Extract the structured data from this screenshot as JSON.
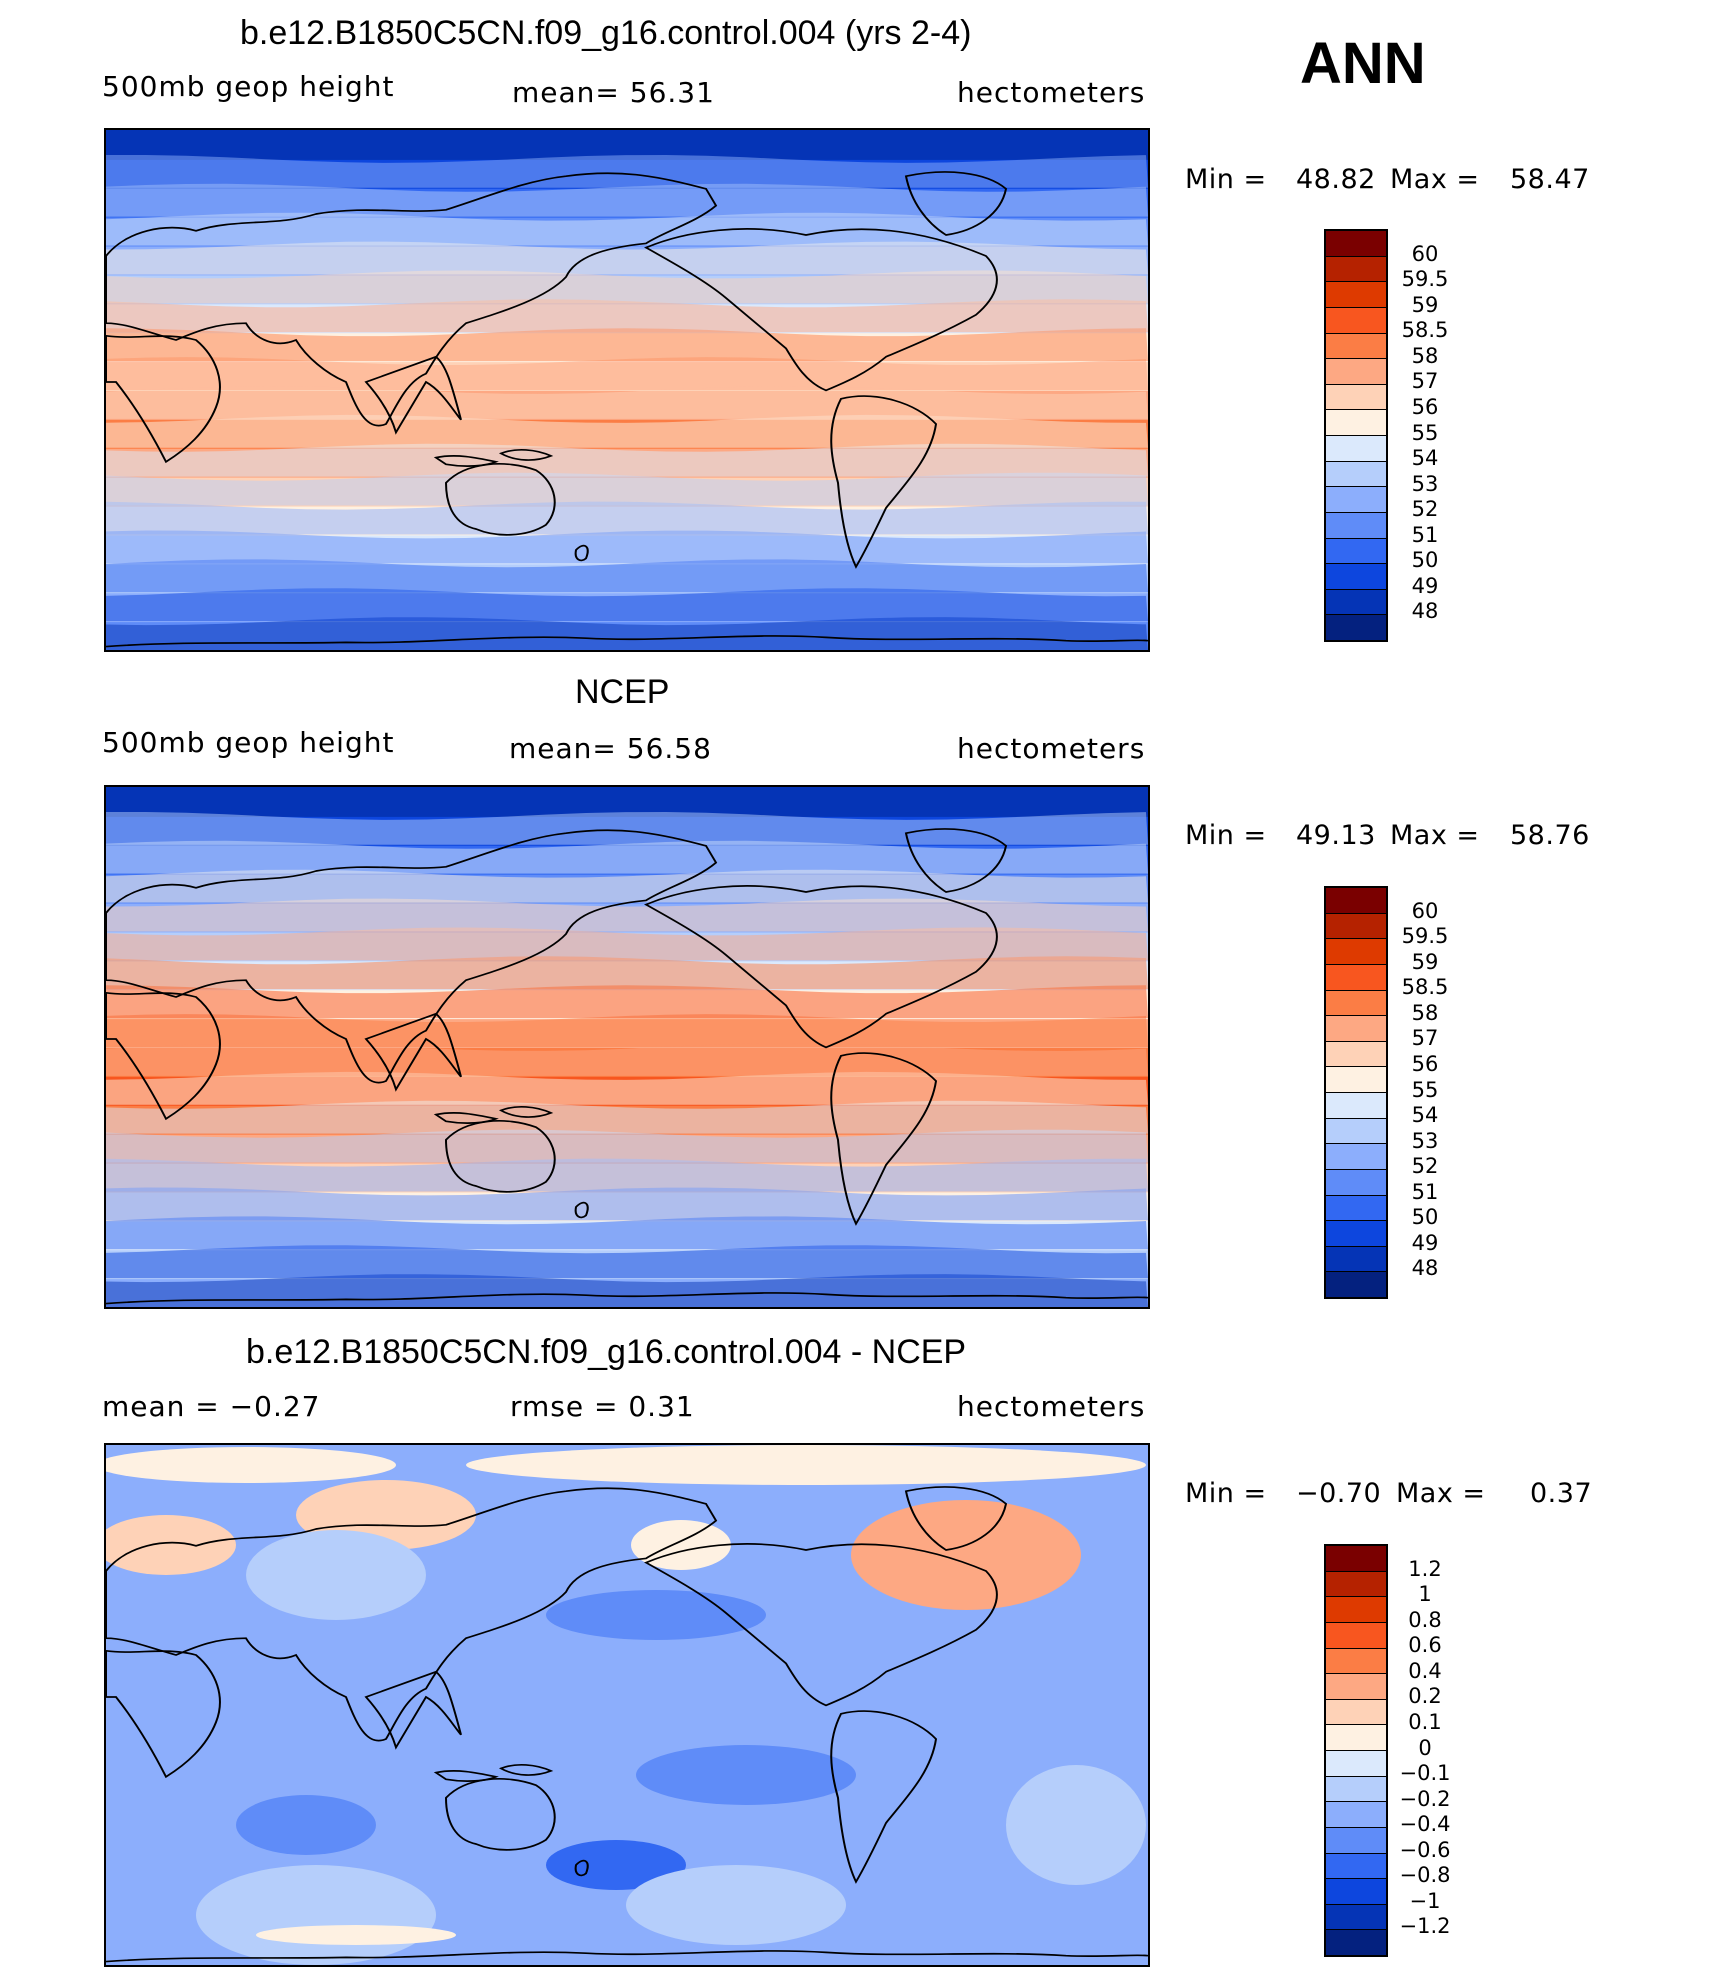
{
  "season": "ANN",
  "panels": [
    {
      "title": "b.e12.B1850C5CN.f09_g16.control.004 (yrs 2-4)",
      "left_label": "500mb  geop  height",
      "center_label": "mean=   56.31",
      "right_label": "hectometers",
      "min_label": "Min  =",
      "min_value": "48.82",
      "max_label": "Max  =",
      "max_value": "58.47",
      "colorbar": {
        "labels": [
          "60",
          "59.5",
          "59",
          "58.5",
          "58",
          "57",
          "56",
          "55",
          "54",
          "53",
          "52",
          "51",
          "50",
          "49",
          "48"
        ],
        "colors": [
          "#7a0000",
          "#b52200",
          "#de3a00",
          "#f8561f",
          "#fb7d45",
          "#fda883",
          "#fed2b7",
          "#fef1e2",
          "#dbe9fc",
          "#b5cefb",
          "#8caefc",
          "#5f8cf8",
          "#3268f2",
          "#0d46de",
          "#0534b6",
          "#04217f"
        ]
      },
      "map_bands": [
        "#0534b6",
        "#0d46de",
        "#3268f2",
        "#5f8cf8",
        "#8caefc",
        "#b5cefb",
        "#dbe9fc",
        "#fef1e2",
        "#fed2b7",
        "#fda883",
        "#fb7d45",
        "#fda883",
        "#fed2b7",
        "#fef1e2",
        "#dbe9fc",
        "#b5cefb",
        "#8caefc",
        "#5f8cf8"
      ]
    },
    {
      "title": "NCEP",
      "left_label": "500mb  geop  height",
      "center_label": "mean=   56.58",
      "right_label": "hectometers",
      "min_label": "Min  =",
      "min_value": "49.13",
      "max_label": "Max  =",
      "max_value": "58.76",
      "colorbar": {
        "labels": [
          "60",
          "59.5",
          "59",
          "58.5",
          "58",
          "57",
          "56",
          "55",
          "54",
          "53",
          "52",
          "51",
          "50",
          "49",
          "48"
        ],
        "colors": [
          "#7a0000",
          "#b52200",
          "#de3a00",
          "#f8561f",
          "#fb7d45",
          "#fda883",
          "#fed2b7",
          "#fef1e2",
          "#dbe9fc",
          "#b5cefb",
          "#8caefc",
          "#5f8cf8",
          "#3268f2",
          "#0d46de",
          "#0534b6",
          "#04217f"
        ]
      },
      "map_bands": [
        "#0534b6",
        "#0d46de",
        "#3268f2",
        "#5f8cf8",
        "#8caefc",
        "#b5cefb",
        "#dbe9fc",
        "#fef1e2",
        "#fda883",
        "#fb7d45",
        "#f8561f",
        "#fb7d45",
        "#fda883",
        "#fed2b7",
        "#fef1e2",
        "#dbe9fc",
        "#b5cefb",
        "#8caefc"
      ]
    },
    {
      "title": "b.e12.B1850C5CN.f09_g16.control.004 - NCEP",
      "left_label": "mean  =    −0.27",
      "center_label": "rmse  =     0.31",
      "right_label": "hectometers",
      "min_label": "Min  =",
      "min_value": "−0.70",
      "max_label": "Max  =",
      "max_value": "0.37",
      "colorbar": {
        "labels": [
          "1.2",
          "1",
          "0.8",
          "0.6",
          "0.4",
          "0.2",
          "0.1",
          "0",
          "−0.1",
          "−0.2",
          "−0.4",
          "−0.6",
          "−0.8",
          "−1",
          "−1.2"
        ],
        "colors": [
          "#7a0000",
          "#b52200",
          "#de3a00",
          "#f8561f",
          "#fb7d45",
          "#fda883",
          "#fed2b7",
          "#fef1e2",
          "#dbe9fc",
          "#b5cefb",
          "#8caefc",
          "#5f8cf8",
          "#3268f2",
          "#0d46de",
          "#0534b6",
          "#04217f"
        ]
      },
      "map_bands": [
        "#8caefc"
      ]
    }
  ]
}
